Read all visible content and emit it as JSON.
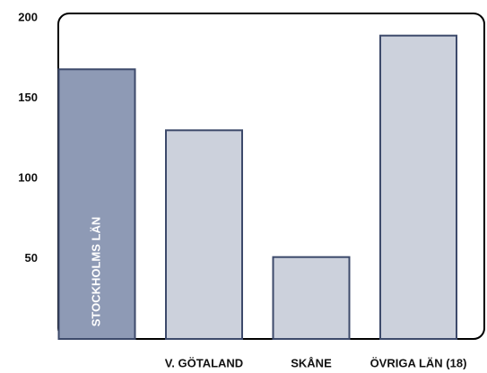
{
  "chart_data": {
    "type": "bar",
    "categories": [
      "STOCKHOLMS LÄN",
      "V. GÖTALAND",
      "SKÅNE",
      "ÖVRIGA LÄN (18)"
    ],
    "values": [
      168,
      130,
      51,
      189
    ],
    "colors": [
      "#8e9ab5",
      "#ccd1dc",
      "#ccd1dc",
      "#ccd1dc"
    ],
    "ylim": [
      0,
      200
    ],
    "yticks": [
      50,
      100,
      150,
      200
    ],
    "grid": false
  }
}
